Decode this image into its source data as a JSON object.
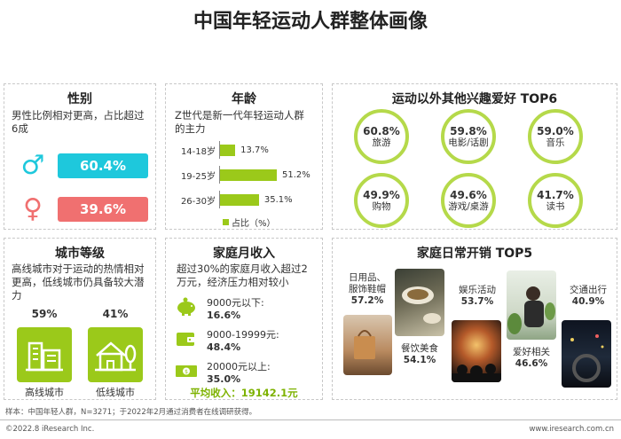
{
  "title": "中国年轻运动人群整体画像",
  "gender": {
    "title": "性别",
    "desc": "男性比例相对更高，占比超过6成",
    "male": {
      "icon": "male-symbol-icon",
      "value": "60.4%",
      "color": "#1ec8dc"
    },
    "female": {
      "icon": "female-symbol-icon",
      "value": "39.6%",
      "color": "#f07070"
    }
  },
  "age": {
    "title": "年龄",
    "desc": "Z世代是新一代年轻运动人群的主力",
    "rows": [
      {
        "label": "14-18岁",
        "value": 13.7,
        "display": "13.7%"
      },
      {
        "label": "19-25岁",
        "value": 51.2,
        "display": "51.2%"
      },
      {
        "label": "26-30岁",
        "value": 35.1,
        "display": "35.1%"
      }
    ],
    "legend": "占比（%）",
    "bar_color": "#9bc91a"
  },
  "hobbies": {
    "title": "运动以外其他兴趣爱好 TOP6",
    "items": [
      {
        "pct": "60.8%",
        "name": "旅游"
      },
      {
        "pct": "59.8%",
        "name": "电影/话剧"
      },
      {
        "pct": "59.0%",
        "name": "音乐"
      },
      {
        "pct": "49.9%",
        "name": "购物"
      },
      {
        "pct": "49.6%",
        "name": "游戏/桌游"
      },
      {
        "pct": "41.7%",
        "name": "读书"
      }
    ]
  },
  "city": {
    "title": "城市等级",
    "desc": "高线城市对于运动的热情相对更高，低线城市仍具备较大潜力",
    "high": {
      "pct": "59%",
      "label": "高线城市",
      "icon": "high-rise-buildings-icon"
    },
    "low": {
      "pct": "41%",
      "label": "低线城市",
      "icon": "house-tree-icon"
    }
  },
  "income": {
    "title": "家庭月收入",
    "desc": "超过30%的家庭月收入超过2万元，经济压力相对较小",
    "rows": [
      {
        "range": "9000元以下:",
        "value": "16.6%",
        "icon": "piggy-bank-icon"
      },
      {
        "range": "9000-19999元:",
        "value": "48.4%",
        "icon": "wallet-icon"
      },
      {
        "range": "20000元以上:",
        "value": "35.0%",
        "icon": "cash-icon"
      }
    ],
    "average": "平均收入：19142.1元"
  },
  "spending": {
    "title": "家庭日常开销 TOP5",
    "items": [
      {
        "name": "日用品、服饰鞋帽",
        "name1": "日用品、",
        "name2": "服饰鞋帽",
        "pct": "57.2%"
      },
      {
        "name": "娱乐活动",
        "pct": "53.7%"
      },
      {
        "name": "交通出行",
        "pct": "40.9%"
      },
      {
        "name": "餐饮美食",
        "pct": "54.1%"
      },
      {
        "name": "爱好相关",
        "pct": "46.6%"
      }
    ]
  },
  "footer": {
    "note": "样本：中国年轻人群，N=3271；于2022年2月通过消费者在线调研获得。",
    "copyright": "©2022.8 iResearch Inc.",
    "site": "www.iresearch.com.cn"
  },
  "colors": {
    "accent": "#9bc91a",
    "circle": "#b5d94a",
    "male": "#1ec8dc",
    "female": "#f07070"
  }
}
